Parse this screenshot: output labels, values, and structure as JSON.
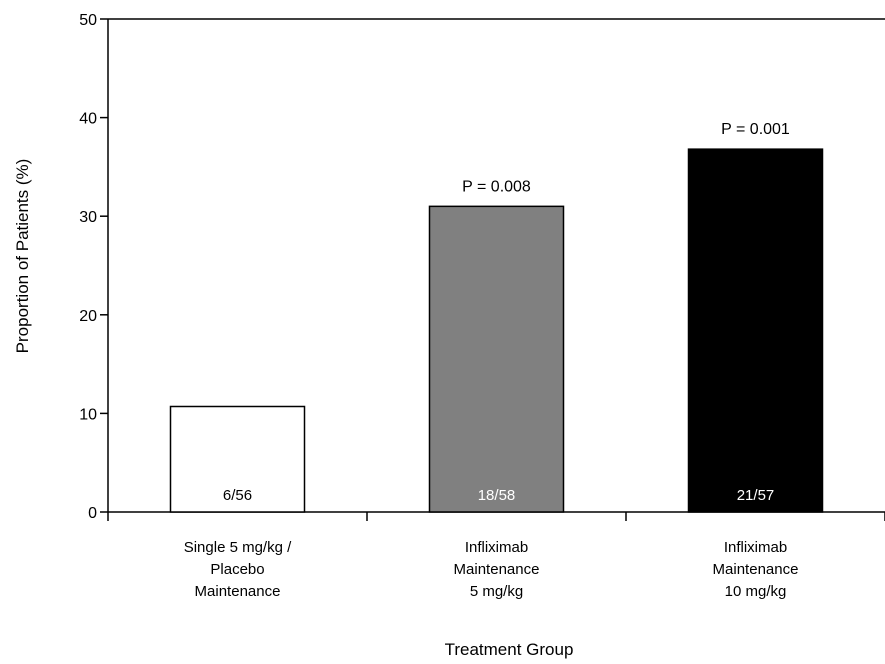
{
  "chart_data": {
    "type": "bar",
    "title": "",
    "xlabel": "Treatment Group",
    "ylabel": "Proportion of Patients (%)",
    "ylim": [
      0,
      50
    ],
    "yticks": [
      0,
      10,
      20,
      30,
      40,
      50
    ],
    "grid": false,
    "categories": [
      [
        "Single 5 mg/kg /",
        "Placebo",
        "Maintenance"
      ],
      [
        "Infliximab",
        "Maintenance",
        "5 mg/kg"
      ],
      [
        "Infliximab",
        "Maintenance",
        "10 mg/kg"
      ]
    ],
    "values": [
      10.7,
      31.0,
      36.8
    ],
    "bar_labels": [
      "6/56",
      "18/58",
      "21/57"
    ],
    "annotations": [
      "",
      "P = 0.008",
      "P = 0.001"
    ],
    "colors": [
      "#ffffff",
      "#808080",
      "#000000"
    ],
    "label_colors": [
      "#000000",
      "#ffffff",
      "#ffffff"
    ]
  }
}
